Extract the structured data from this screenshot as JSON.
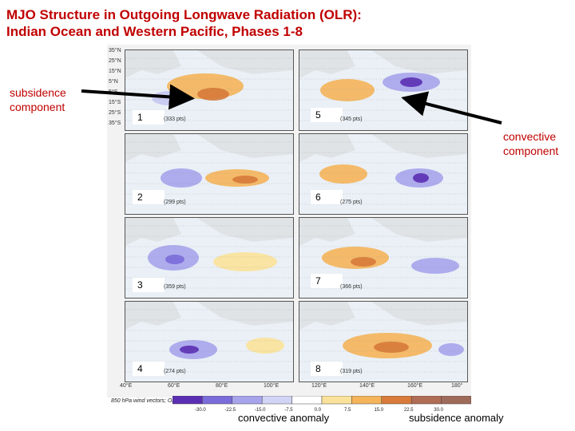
{
  "title_line1": "MJO Structure in Outgoing Longwave Radiation (OLR):",
  "title_line2": "Indian Ocean and Western Pacific, Phases 1-8",
  "subsidence_label_line1": "subsidence",
  "subsidence_label_line2": "component",
  "convective_label_line1": "convective",
  "convective_label_line2": "component",
  "caption_convective": "convective anomaly",
  "caption_subsidence": "subsidence anomaly",
  "colorbar_label": "850 hPa wind vectors;  OLR (W m⁻²)",
  "colorbar_ticks": [
    "-30.0",
    "-22.5",
    "-15.0",
    "-7.5",
    "0.0",
    "7.5",
    "15.0",
    "22.5",
    "30.0"
  ],
  "colorbar_colors": [
    "#5b2fb3",
    "#7a6cd9",
    "#a7a4ec",
    "#d3d3f5",
    "#ffffff",
    "#fbe29a",
    "#f5b45a",
    "#d77a3a",
    "#b06c55",
    "#9e6a5a"
  ],
  "panels": [
    {
      "num": "1",
      "pts": "(333 pts)"
    },
    {
      "num": "2",
      "pts": "(299 pts)"
    },
    {
      "num": "3",
      "pts": "(359 pts)"
    },
    {
      "num": "4",
      "pts": "(274 pts)"
    },
    {
      "num": "5",
      "pts": "(345 pts)"
    },
    {
      "num": "6",
      "pts": "(275 pts)"
    },
    {
      "num": "7",
      "pts": "(366 pts)"
    },
    {
      "num": "8",
      "pts": "(319 pts)"
    }
  ],
  "lat_ticks": [
    "35°N",
    "25°N",
    "15°N",
    "5°N",
    "5°S",
    "15°S",
    "25°S",
    "35°S"
  ],
  "lon_ticks": [
    "40°E",
    "60°E",
    "80°E",
    "100°E",
    "120°E",
    "140°E",
    "160°E",
    "180°"
  ]
}
